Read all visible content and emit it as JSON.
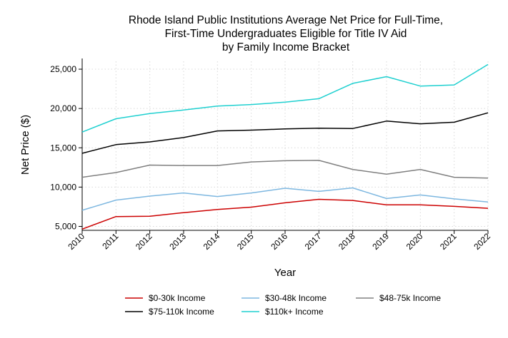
{
  "chart_data": {
    "type": "line",
    "title_lines": [
      "Rhode Island Public Institutions Average Net Price for Full-Time,",
      "First-Time Undergraduates Eligible for Title IV Aid",
      "by Family Income Bracket"
    ],
    "xlabel": "Year",
    "ylabel": "Net Price ($)",
    "x": [
      2010,
      2011,
      2012,
      2013,
      2014,
      2015,
      2016,
      2017,
      2018,
      2019,
      2020,
      2021,
      2022
    ],
    "x_tick_labels": [
      "2010",
      "2011",
      "2012",
      "2013",
      "2014",
      "2015",
      "2016",
      "2017",
      "2018",
      "2019",
      "2020",
      "2021",
      "2022"
    ],
    "y_ticks": [
      5000,
      10000,
      15000,
      20000,
      25000
    ],
    "y_tick_labels": [
      "5,000",
      "10,000",
      "15,000",
      "20,000",
      "25,000"
    ],
    "ylim": [
      4500,
      26000
    ],
    "grid": true,
    "legend_position": "bottom",
    "series": [
      {
        "name": "$0-30k Income",
        "color": "#cc0000",
        "values": [
          4650,
          6250,
          6300,
          6750,
          7150,
          7450,
          8000,
          8450,
          8300,
          7750,
          7750,
          7550,
          7300
        ]
      },
      {
        "name": "$30-48k Income",
        "color": "#7db7e0",
        "values": [
          7050,
          8350,
          8850,
          9250,
          8800,
          9250,
          9850,
          9450,
          9900,
          8550,
          9000,
          8500,
          8100
        ]
      },
      {
        "name": "$48-75k Income",
        "color": "#808080",
        "values": [
          11250,
          11850,
          12800,
          12750,
          12750,
          13200,
          13350,
          13400,
          12250,
          11650,
          12250,
          11250,
          11150
        ]
      },
      {
        "name": "$75-110k Income",
        "color": "#000000",
        "values": [
          14300,
          15400,
          15750,
          16300,
          17150,
          17250,
          17400,
          17500,
          17450,
          18400,
          18050,
          18250,
          19450
        ]
      },
      {
        "name": "$110k+ Income",
        "color": "#1fd0d0",
        "values": [
          17000,
          18700,
          19350,
          19800,
          20300,
          20500,
          20800,
          21250,
          23200,
          24050,
          22850,
          23000,
          25600
        ]
      }
    ]
  }
}
